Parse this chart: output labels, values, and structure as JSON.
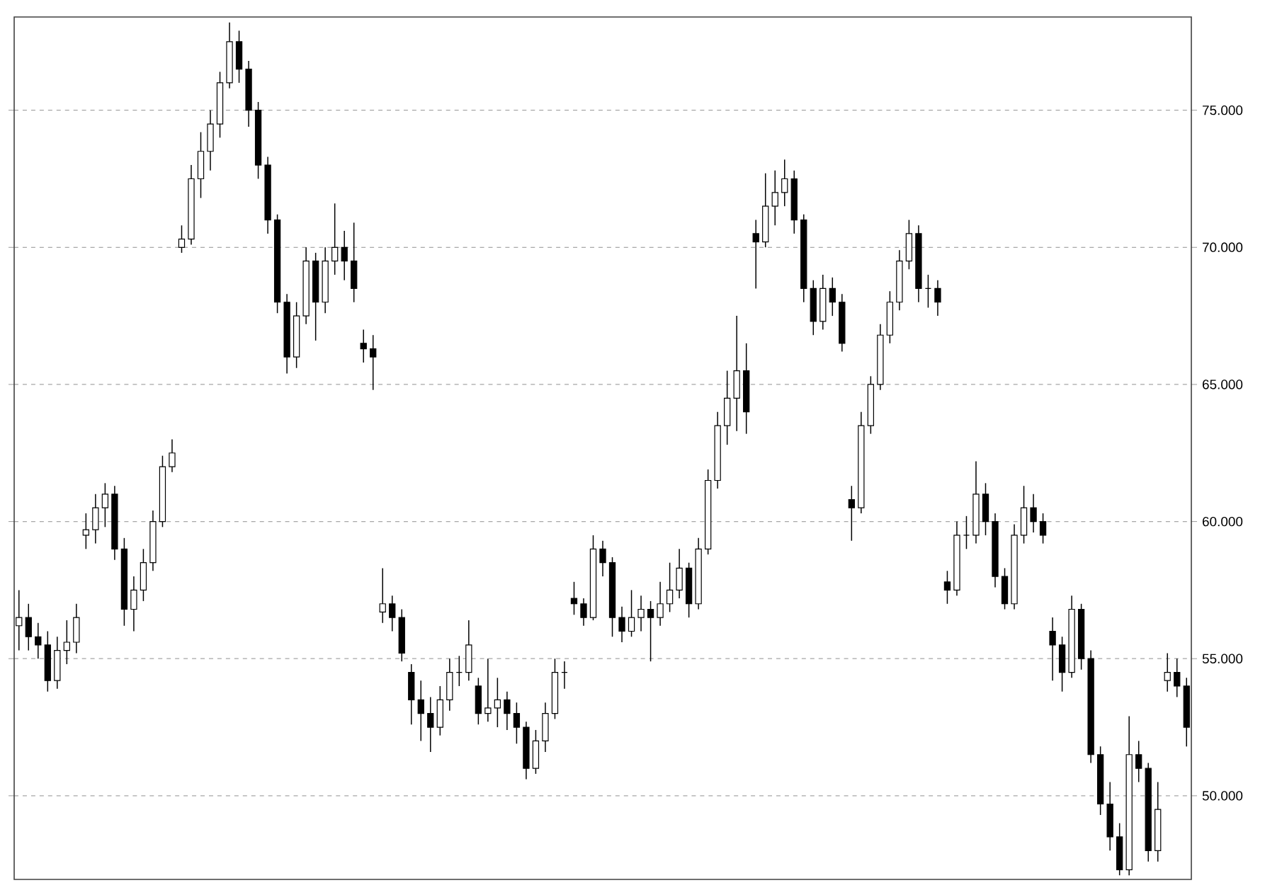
{
  "chart_data": {
    "type": "candlestick",
    "categories": [
      null,
      null,
      null,
      null,
      null,
      null,
      null,
      null,
      null,
      null,
      null,
      null,
      null,
      null,
      null,
      null,
      null,
      null,
      null,
      null,
      null,
      null,
      null,
      null,
      null,
      null,
      null,
      null,
      null,
      null,
      null,
      null,
      null,
      null,
      null,
      null,
      null,
      null,
      null,
      null,
      null,
      null,
      null,
      null,
      null,
      null,
      null,
      null,
      null,
      null,
      null,
      null,
      null,
      null,
      null,
      null,
      null,
      null,
      null,
      null,
      null,
      null,
      null,
      null,
      null,
      null,
      null,
      null,
      null,
      null,
      null,
      null,
      null,
      null,
      null,
      null,
      null,
      null,
      null,
      null,
      null,
      null,
      null,
      null,
      null,
      null,
      null,
      null,
      null,
      null,
      null,
      null,
      null,
      null,
      null,
      null,
      null,
      null,
      null,
      null,
      null,
      null,
      null,
      null,
      null,
      null,
      null,
      null,
      null,
      null,
      null,
      null,
      null,
      null,
      null,
      null,
      null,
      null,
      null,
      null,
      null,
      null,
      null
    ],
    "ohlc": [
      [
        56.2,
        57.5,
        55.3,
        56.5
      ],
      [
        56.5,
        57.0,
        55.3,
        55.8
      ],
      [
        55.8,
        56.3,
        55.0,
        55.5
      ],
      [
        55.5,
        56.0,
        53.8,
        54.2
      ],
      [
        54.2,
        55.8,
        53.9,
        55.3
      ],
      [
        55.3,
        56.4,
        54.8,
        55.6
      ],
      [
        55.6,
        57.0,
        55.2,
        56.5
      ],
      [
        59.5,
        60.3,
        59.0,
        59.7
      ],
      [
        59.7,
        61.0,
        59.2,
        60.5
      ],
      [
        60.5,
        61.4,
        59.8,
        61.0
      ],
      [
        61.0,
        61.3,
        58.6,
        59.0
      ],
      [
        59.0,
        59.4,
        56.2,
        56.8
      ],
      [
        56.8,
        58.0,
        56.0,
        57.5
      ],
      [
        57.5,
        59.0,
        57.1,
        58.5
      ],
      [
        58.5,
        60.4,
        58.2,
        60.0
      ],
      [
        60.0,
        62.4,
        59.8,
        62.0
      ],
      [
        62.0,
        63.0,
        61.8,
        62.5
      ],
      [
        70.0,
        70.8,
        69.8,
        70.3
      ],
      [
        70.3,
        73.0,
        70.1,
        72.5
      ],
      [
        72.5,
        74.2,
        71.8,
        73.5
      ],
      [
        73.5,
        75.0,
        72.8,
        74.5
      ],
      [
        74.5,
        76.4,
        74.0,
        76.0
      ],
      [
        76.0,
        78.2,
        75.8,
        77.5
      ],
      [
        77.5,
        77.9,
        76.0,
        76.5
      ],
      [
        76.5,
        76.8,
        74.4,
        75.0
      ],
      [
        75.0,
        75.3,
        72.5,
        73.0
      ],
      [
        73.0,
        73.3,
        70.5,
        71.0
      ],
      [
        71.0,
        71.2,
        67.6,
        68.0
      ],
      [
        68.0,
        68.3,
        65.4,
        66.0
      ],
      [
        66.0,
        68.0,
        65.6,
        67.5
      ],
      [
        67.5,
        70.0,
        67.2,
        69.5
      ],
      [
        69.5,
        69.8,
        66.6,
        68.0
      ],
      [
        68.0,
        70.0,
        67.6,
        69.5
      ],
      [
        69.5,
        71.6,
        69.0,
        70.0
      ],
      [
        70.0,
        70.6,
        68.8,
        69.5
      ],
      [
        69.5,
        70.9,
        68.0,
        68.5
      ],
      [
        66.5,
        67.0,
        65.8,
        66.3
      ],
      [
        66.3,
        66.8,
        64.8,
        66.0
      ],
      [
        56.7,
        58.3,
        56.3,
        57.0
      ],
      [
        57.0,
        57.3,
        56.0,
        56.5
      ],
      [
        56.5,
        56.8,
        54.9,
        55.2
      ],
      [
        54.5,
        54.8,
        52.6,
        53.5
      ],
      [
        53.5,
        54.2,
        52.0,
        53.0
      ],
      [
        53.0,
        53.6,
        51.6,
        52.5
      ],
      [
        52.5,
        54.0,
        52.2,
        53.5
      ],
      [
        53.5,
        55.0,
        53.1,
        54.5
      ],
      [
        54.5,
        55.1,
        54.0,
        54.5
      ],
      [
        54.5,
        56.4,
        54.2,
        55.5
      ],
      [
        54.0,
        54.3,
        52.6,
        53.0
      ],
      [
        53.0,
        55.0,
        52.7,
        53.2
      ],
      [
        53.2,
        54.3,
        52.5,
        53.5
      ],
      [
        53.5,
        53.8,
        52.4,
        53.0
      ],
      [
        53.0,
        53.4,
        51.9,
        52.5
      ],
      [
        52.5,
        52.7,
        50.6,
        51.0
      ],
      [
        51.0,
        52.4,
        50.8,
        52.0
      ],
      [
        52.0,
        53.4,
        51.6,
        53.0
      ],
      [
        53.0,
        55.0,
        52.8,
        54.5
      ],
      [
        54.5,
        54.9,
        53.9,
        54.5
      ],
      [
        57.2,
        57.8,
        56.6,
        57.0
      ],
      [
        57.0,
        57.2,
        56.2,
        56.5
      ],
      [
        56.5,
        59.5,
        56.4,
        59.0
      ],
      [
        59.0,
        59.3,
        58.0,
        58.5
      ],
      [
        58.5,
        58.7,
        55.8,
        56.5
      ],
      [
        56.5,
        56.9,
        55.6,
        56.0
      ],
      [
        56.0,
        57.5,
        55.8,
        56.5
      ],
      [
        56.5,
        57.3,
        56.0,
        56.8
      ],
      [
        56.8,
        57.1,
        54.9,
        56.5
      ],
      [
        56.5,
        57.8,
        56.2,
        57.0
      ],
      [
        57.0,
        58.5,
        56.7,
        57.5
      ],
      [
        57.5,
        59.0,
        57.2,
        58.3
      ],
      [
        58.3,
        58.5,
        56.5,
        57.0
      ],
      [
        57.0,
        59.4,
        56.8,
        59.0
      ],
      [
        59.0,
        61.9,
        58.8,
        61.5
      ],
      [
        61.5,
        64.0,
        61.2,
        63.5
      ],
      [
        63.5,
        65.5,
        62.8,
        64.5
      ],
      [
        64.5,
        67.5,
        63.3,
        65.5
      ],
      [
        65.5,
        66.5,
        63.2,
        64.0
      ],
      [
        70.5,
        71.0,
        68.5,
        70.2
      ],
      [
        70.2,
        72.7,
        70.0,
        71.5
      ],
      [
        71.5,
        72.8,
        70.8,
        72.0
      ],
      [
        72.0,
        73.2,
        71.5,
        72.5
      ],
      [
        72.5,
        72.8,
        70.5,
        71.0
      ],
      [
        71.0,
        71.2,
        68.0,
        68.5
      ],
      [
        68.5,
        68.8,
        66.8,
        67.3
      ],
      [
        67.3,
        69.0,
        67.0,
        68.5
      ],
      [
        68.5,
        68.9,
        67.5,
        68.0
      ],
      [
        68.0,
        68.3,
        66.2,
        66.5
      ],
      [
        60.8,
        61.3,
        59.3,
        60.5
      ],
      [
        60.5,
        64.0,
        60.3,
        63.5
      ],
      [
        63.5,
        65.3,
        63.2,
        65.0
      ],
      [
        65.0,
        67.2,
        64.8,
        66.8
      ],
      [
        66.8,
        68.4,
        66.5,
        68.0
      ],
      [
        68.0,
        69.9,
        67.7,
        69.5
      ],
      [
        69.5,
        71.0,
        69.2,
        70.5
      ],
      [
        70.5,
        70.8,
        68.0,
        68.5
      ],
      [
        68.5,
        69.0,
        67.8,
        68.5
      ],
      [
        68.5,
        68.8,
        67.5,
        68.0
      ],
      [
        57.8,
        58.2,
        57.0,
        57.5
      ],
      [
        57.5,
        60.0,
        57.3,
        59.5
      ],
      [
        59.5,
        60.2,
        59.0,
        59.5
      ],
      [
        59.5,
        62.2,
        59.2,
        61.0
      ],
      [
        61.0,
        61.4,
        59.5,
        60.0
      ],
      [
        60.0,
        60.3,
        57.6,
        58.0
      ],
      [
        58.0,
        58.3,
        56.8,
        57.0
      ],
      [
        57.0,
        59.9,
        56.8,
        59.5
      ],
      [
        59.5,
        61.3,
        59.2,
        60.5
      ],
      [
        60.5,
        61.0,
        59.6,
        60.0
      ],
      [
        60.0,
        60.3,
        59.2,
        59.5
      ],
      [
        56.0,
        56.5,
        54.2,
        55.5
      ],
      [
        55.5,
        55.8,
        53.8,
        54.5
      ],
      [
        54.5,
        57.3,
        54.3,
        56.8
      ],
      [
        56.8,
        57.0,
        54.6,
        55.0
      ],
      [
        55.0,
        55.3,
        51.2,
        51.5
      ],
      [
        51.5,
        51.8,
        49.3,
        49.7
      ],
      [
        49.7,
        50.5,
        48.0,
        48.5
      ],
      [
        48.5,
        49.0,
        47.1,
        47.3
      ],
      [
        47.3,
        52.9,
        47.1,
        51.5
      ],
      [
        51.5,
        52.0,
        50.5,
        51.0
      ],
      [
        51.0,
        51.2,
        47.6,
        48.0
      ],
      [
        48.0,
        50.5,
        47.6,
        49.5
      ],
      [
        54.2,
        55.2,
        53.8,
        54.5
      ],
      [
        54.5,
        55.0,
        53.6,
        54.0
      ],
      [
        54.0,
        54.3,
        51.8,
        52.5
      ]
    ],
    "ylim": [
      46.95,
      78.4
    ],
    "yticks": [
      {
        "value": 50,
        "label": "50.000"
      },
      {
        "value": 55,
        "label": "55.000"
      },
      {
        "value": 60,
        "label": "60.000"
      },
      {
        "value": 65,
        "label": "65.000"
      },
      {
        "value": 70,
        "label": "70.000"
      },
      {
        "value": 75,
        "label": "75.000"
      }
    ],
    "grid": "y",
    "tick_labels": "y"
  }
}
